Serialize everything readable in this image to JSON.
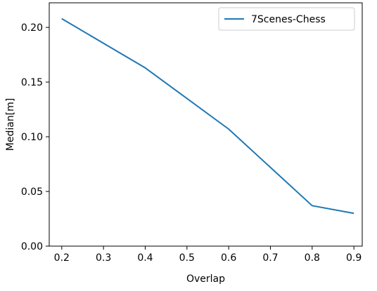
{
  "chart_data": {
    "type": "line",
    "xlabel": "Overlap",
    "ylabel": "Median[m]",
    "xlim": [
      0.17,
      0.92
    ],
    "ylim": [
      0.0,
      0.2225
    ],
    "xticks": [
      0.2,
      0.3,
      0.4,
      0.5,
      0.6,
      0.7,
      0.8,
      0.9
    ],
    "xtick_labels": [
      "0.2",
      "0.3",
      "0.4",
      "0.5",
      "0.6",
      "0.7",
      "0.8",
      "0.9"
    ],
    "yticks": [
      0.0,
      0.05,
      0.1,
      0.15,
      0.2
    ],
    "ytick_labels": [
      "0.00",
      "0.05",
      "0.10",
      "0.15",
      "0.20"
    ],
    "grid": false,
    "legend_position": "top-right",
    "series": [
      {
        "name": "7Scenes-Chess",
        "color": "#1f77b4",
        "x": [
          0.2,
          0.4,
          0.6,
          0.8,
          0.9
        ],
        "y": [
          0.208,
          0.163,
          0.107,
          0.037,
          0.03
        ]
      }
    ]
  }
}
